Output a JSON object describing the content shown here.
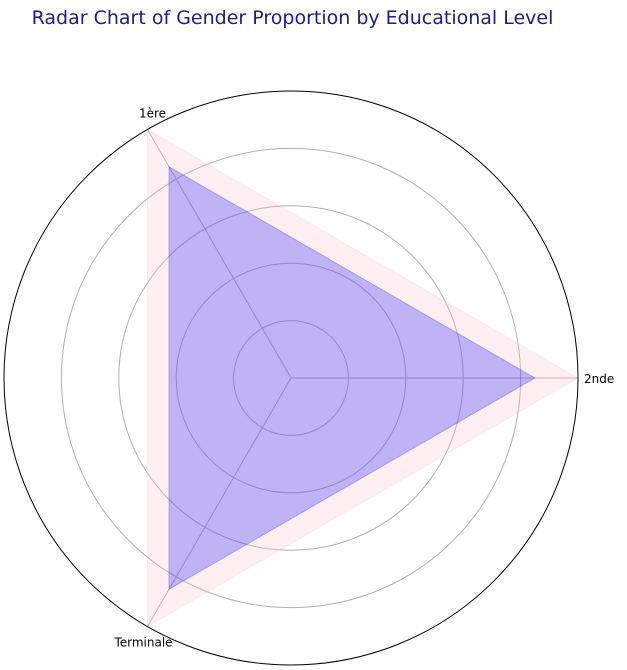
{
  "chart_data": {
    "type": "radar",
    "title": "Radar Chart of Gender Proportion by Educational Level",
    "categories": [
      "2nde",
      "1ère",
      "Terminale"
    ],
    "series": [
      {
        "values": [
          1.0,
          1.0,
          1.0
        ],
        "color": "#ffc0cb",
        "fill_opacity": 0.25
      },
      {
        "values": [
          0.85,
          0.85,
          0.85
        ],
        "color": "#0000ff",
        "fill_opacity": 0.25
      }
    ],
    "rlim": [
      0,
      1.0
    ],
    "radial_gridlines": [
      0.2,
      0.4,
      0.6,
      0.8
    ],
    "radial_tick_labels_shown": false,
    "grid": true
  },
  "colors": {
    "title": "#1b1b8f",
    "grid": "#b0b0b0",
    "outline": "#000000"
  }
}
